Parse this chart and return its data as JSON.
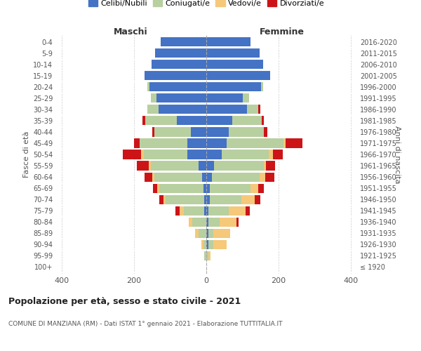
{
  "age_groups": [
    "100+",
    "95-99",
    "90-94",
    "85-89",
    "80-84",
    "75-79",
    "70-74",
    "65-69",
    "60-64",
    "55-59",
    "50-54",
    "45-49",
    "40-44",
    "35-39",
    "30-34",
    "25-29",
    "20-24",
    "15-19",
    "10-14",
    "5-9",
    "0-4"
  ],
  "birth_years": [
    "≤ 1920",
    "1921-1925",
    "1926-1930",
    "1931-1935",
    "1936-1940",
    "1941-1945",
    "1946-1950",
    "1951-1955",
    "1956-1960",
    "1961-1965",
    "1966-1970",
    "1971-1975",
    "1976-1980",
    "1981-1985",
    "1986-1990",
    "1991-1995",
    "1996-2000",
    "2001-2005",
    "2006-2010",
    "2011-2015",
    "2016-2020"
  ],
  "males": {
    "celibi": [
      0,
      0,
      0,
      0,
      0,
      5,
      5,
      8,
      12,
      22,
      52,
      52,
      42,
      82,
      132,
      138,
      158,
      172,
      152,
      142,
      127
    ],
    "coniugati": [
      0,
      5,
      8,
      22,
      38,
      58,
      108,
      122,
      132,
      132,
      122,
      132,
      102,
      88,
      32,
      16,
      6,
      0,
      0,
      0,
      0
    ],
    "vedovi": [
      0,
      0,
      5,
      10,
      10,
      10,
      6,
      6,
      6,
      6,
      6,
      0,
      0,
      0,
      0,
      0,
      0,
      0,
      0,
      0,
      0
    ],
    "divorziati": [
      0,
      0,
      0,
      0,
      0,
      12,
      12,
      12,
      22,
      32,
      52,
      16,
      6,
      6,
      0,
      0,
      0,
      0,
      0,
      0,
      0
    ]
  },
  "females": {
    "nubili": [
      0,
      0,
      5,
      5,
      5,
      5,
      10,
      10,
      15,
      22,
      42,
      57,
      62,
      72,
      112,
      102,
      152,
      177,
      157,
      147,
      122
    ],
    "coniugate": [
      0,
      5,
      15,
      15,
      32,
      57,
      87,
      112,
      132,
      137,
      132,
      157,
      97,
      82,
      32,
      16,
      6,
      0,
      0,
      0,
      0
    ],
    "vedove": [
      0,
      6,
      36,
      47,
      47,
      47,
      37,
      22,
      16,
      6,
      11,
      6,
      0,
      0,
      0,
      0,
      0,
      0,
      0,
      0,
      0
    ],
    "divorziate": [
      0,
      0,
      0,
      0,
      6,
      12,
      16,
      16,
      26,
      26,
      26,
      47,
      11,
      6,
      6,
      0,
      0,
      0,
      0,
      0,
      0
    ]
  },
  "colors": {
    "celibi": "#4472c4",
    "coniugati": "#b8cfa0",
    "vedovi": "#f5c87a",
    "divorziati": "#cc1417"
  },
  "xlim": 420,
  "title": "Popolazione per età, sesso e stato civile - 2021",
  "subtitle": "COMUNE DI MANZIANA (RM) - Dati ISTAT 1° gennaio 2021 - Elaborazione TUTTITALIA.IT",
  "ylabel_left": "Fasce di età",
  "ylabel_right": "Anni di nascita",
  "xlabel_left": "Maschi",
  "xlabel_right": "Femmine"
}
